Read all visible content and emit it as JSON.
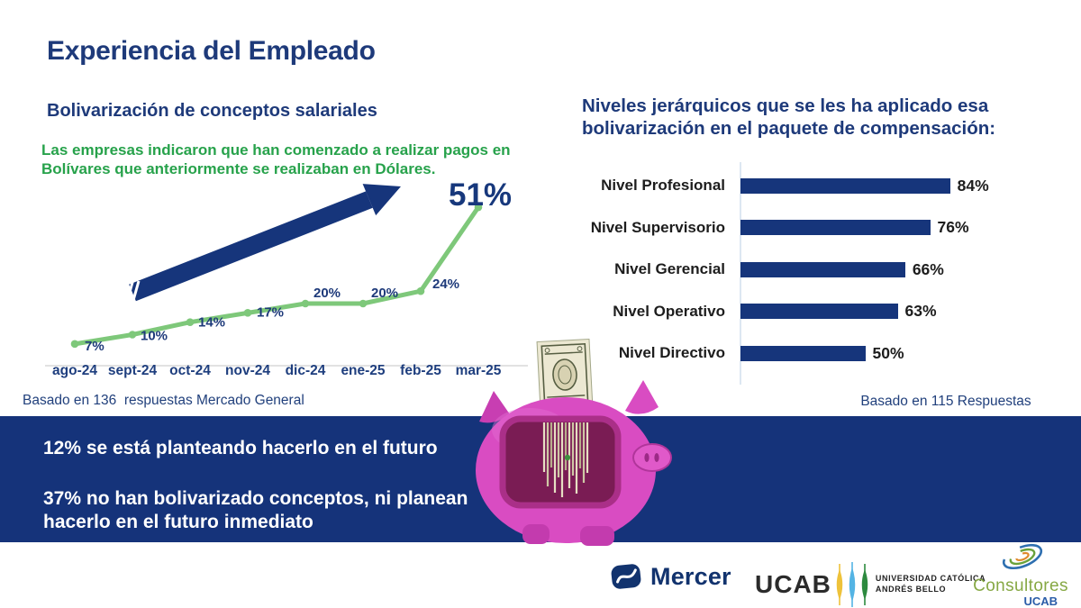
{
  "slide": {
    "title": "Experiencia del Empleado",
    "left_section": {
      "subtitle": "Bolivarización de conceptos salariales",
      "lede": "Las empresas indicaron que han comenzado a realizar pagos en Bolívares que anteriormente se realizaban en Dólares.",
      "highlight_value": "51%",
      "source_note": "Basado en 136  respuestas Mercado General"
    },
    "right_section": {
      "title": "Niveles jerárquicos que se les ha aplicado esa bolivarización en el paquete de compensación:",
      "source_note": "Basado en 115 Respuestas"
    },
    "banner": {
      "line1": "12% se está planteando hacerlo en el futuro",
      "line2": "37% no han bolivarizado conceptos, ni planean hacerlo en el futuro inmediato"
    },
    "footer": {
      "mercer_label": "Mercer",
      "ucab_label": "UCAB",
      "ucab_name_line1": "UNIVERSIDAD CATÓLICA",
      "ucab_name_line2": "ANDRÉS BELLO",
      "consultores_label": "Consultores",
      "consultores_sub": "UCAB"
    }
  },
  "chart_data": [
    {
      "type": "line",
      "title": "Bolivarización de conceptos salariales",
      "x": [
        "ago-24",
        "sept-24",
        "oct-24",
        "nov-24",
        "dic-24",
        "ene-25",
        "feb-25",
        "mar-25"
      ],
      "values": [
        7,
        10,
        14,
        17,
        20,
        20,
        24,
        51
      ],
      "unit": "%",
      "annotation": "51%",
      "source": "Basado en 136  respuestas Mercado General",
      "line_color": "#7ec87a",
      "label_color": "#1e3a7a",
      "grid": false,
      "ylim": [
        0,
        60
      ]
    },
    {
      "type": "bar",
      "orientation": "horizontal",
      "categories": [
        "Nivel Profesional",
        "Nivel Supervisorio",
        "Nivel Gerencial",
        "Nivel Operativo",
        "Nivel Directivo"
      ],
      "values": [
        84,
        76,
        66,
        63,
        50
      ],
      "unit": "%",
      "source": "Basado en 115 Respuestas",
      "bar_color": "#16357b",
      "xlim": [
        0,
        100
      ],
      "grid": false
    }
  ],
  "colors": {
    "heading_navy": "#1e3a7a",
    "band_navy": "#15337a",
    "arrow_navy": "#16357b",
    "line_green": "#7ec87a",
    "text_green": "#27a24b",
    "baseline_gray": "#d9d9d9",
    "axis_light_blue": "#dde7f2",
    "pig_pink": "#d94cc2"
  }
}
